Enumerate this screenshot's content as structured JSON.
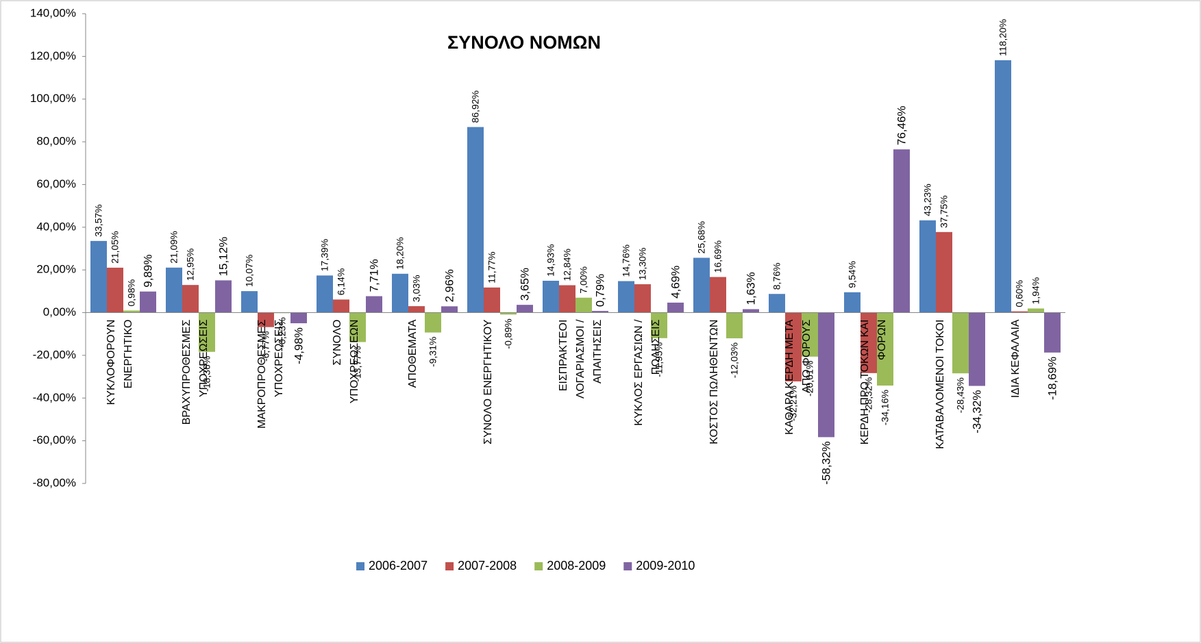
{
  "chart_data": {
    "type": "bar",
    "title": "ΣΥΝΟΛΟ ΝΟΜΩΝ",
    "categories": [
      "ΚΥΚΛΟΦΟΡΟΥΝ ΕΝΕΡΓΗΤΙΚΟ",
      "ΒΡΑΧΥΠΡΟΘΕΣΜΕΣ ΥΠΟΧΡΕΩΣΕΙΣ",
      "ΜΑΚΡΟΠΡΟΘΕΣΜΕΣ ΥΠΟΧΡΕΩΣΕΙΣ",
      "ΣΥΝΟΛΟ ΥΠΟΧΡΕΩΣΕΩΝ",
      "ΑΠΟΘΕΜΑΤΑ",
      "ΣΥΝΟΛΟ ΕΝΕΡΓΗΤΙΚΟΥ",
      "ΕΙΣΠΡΑΚΤΕΟΙ ΛΟΓΑΡΙΑΣΜΟΙ / ΑΠΑΙΤΗΣΕΙΣ",
      "ΚΥΚΛΟΣ ΕΡΓΑΣΙΩΝ / ΠΩΛΗΣΕΙΣ",
      "ΚΟΣΤΟΣ ΠΩΛΗΘΕΝΤΩΝ",
      "ΚΑΘΑΡΑ ΚΕΡΔΗ ΜΕΤΑ ΑΠΟ ΦΟΡΟΥΣ",
      "ΚΕΡΔΗ ΠΡΟ ΤΟΚΩΝ ΚΑΙ ΦΟΡΩΝ",
      "ΚΑΤΑΒΑΛΟΜΕΝΟΙ ΤΟΚΟΙ",
      "ΙΔΙΑ ΚΕΦΑΛΑΙΑ"
    ],
    "series": [
      {
        "name": "2006-2007",
        "color": "#4f81bd",
        "values": [
          33.57,
          21.09,
          10.07,
          17.39,
          18.2,
          86.92,
          14.93,
          14.76,
          25.68,
          8.76,
          9.54,
          43.23,
          118.2
        ],
        "value_labels": [
          "33,57%",
          "21,09%",
          "10,07%",
          "17,39%",
          "18,20%",
          "86,92%",
          "14,93%",
          "14,76%",
          "25,68%",
          "8,76%",
          "9,54%",
          "43,23%",
          "118,20%"
        ]
      },
      {
        "name": "2007-2008",
        "color": "#c0504d",
        "values": [
          21.05,
          12.95,
          -6.77,
          6.14,
          3.03,
          11.77,
          12.84,
          13.3,
          16.69,
          -32.21,
          -28.32,
          37.75,
          0.6
        ],
        "value_labels": [
          "21,05%",
          "12,95%",
          "-6,77%",
          "6,14%",
          "3,03%",
          "11,77%",
          "12,84%",
          "13,30%",
          "16,69%",
          "-32,21%",
          "-28,32%",
          "37,75%",
          "0,60%"
        ]
      },
      {
        "name": "2008-2009",
        "color": "#9bbb59",
        "values": [
          0.98,
          -18.36,
          -0.23,
          -13.77,
          -9.31,
          -0.89,
          7.0,
          -11.95,
          -12.03,
          -20.61,
          -34.16,
          -28.43,
          1.94
        ],
        "value_labels": [
          "0,98%",
          "-18,36%",
          "-0,23%",
          "-13,77%",
          "-9,31%",
          "-0,89%",
          "7,00%",
          "-11,95%",
          "-12,03%",
          "-20,61%",
          "-34,16%",
          "-28,43%",
          "1,94%"
        ]
      },
      {
        "name": "2009-2010",
        "color": "#8064a2",
        "values": [
          9.89,
          15.12,
          -4.98,
          7.71,
          2.96,
          3.65,
          0.79,
          4.69,
          1.63,
          -58.32,
          76.46,
          -34.32,
          -18.69
        ],
        "value_labels": [
          "9,89%",
          "15,12%",
          "-4,98%",
          "7,71%",
          "2,96%",
          "3,65%",
          "0,79%",
          "4,69%",
          "1,63%",
          "-58,32%",
          "76,46%",
          "-34,32%",
          "-18,69%"
        ]
      }
    ],
    "ylim": [
      -80,
      140
    ],
    "yticks": [
      {
        "value": -80,
        "label": "-80,00%"
      },
      {
        "value": -60,
        "label": "-60,00%"
      },
      {
        "value": -40,
        "label": "-40,00%"
      },
      {
        "value": -20,
        "label": "-20,00%"
      },
      {
        "value": 0,
        "label": "0,00%"
      },
      {
        "value": 20,
        "label": "20,00%"
      },
      {
        "value": 40,
        "label": "40,00%"
      },
      {
        "value": 60,
        "label": "60,00%"
      },
      {
        "value": 80,
        "label": "80,00%"
      },
      {
        "value": 100,
        "label": "100,00%"
      },
      {
        "value": 120,
        "label": "120,00%"
      },
      {
        "value": 140,
        "label": "140,00%"
      }
    ],
    "grid": false,
    "legend": "bottom"
  }
}
